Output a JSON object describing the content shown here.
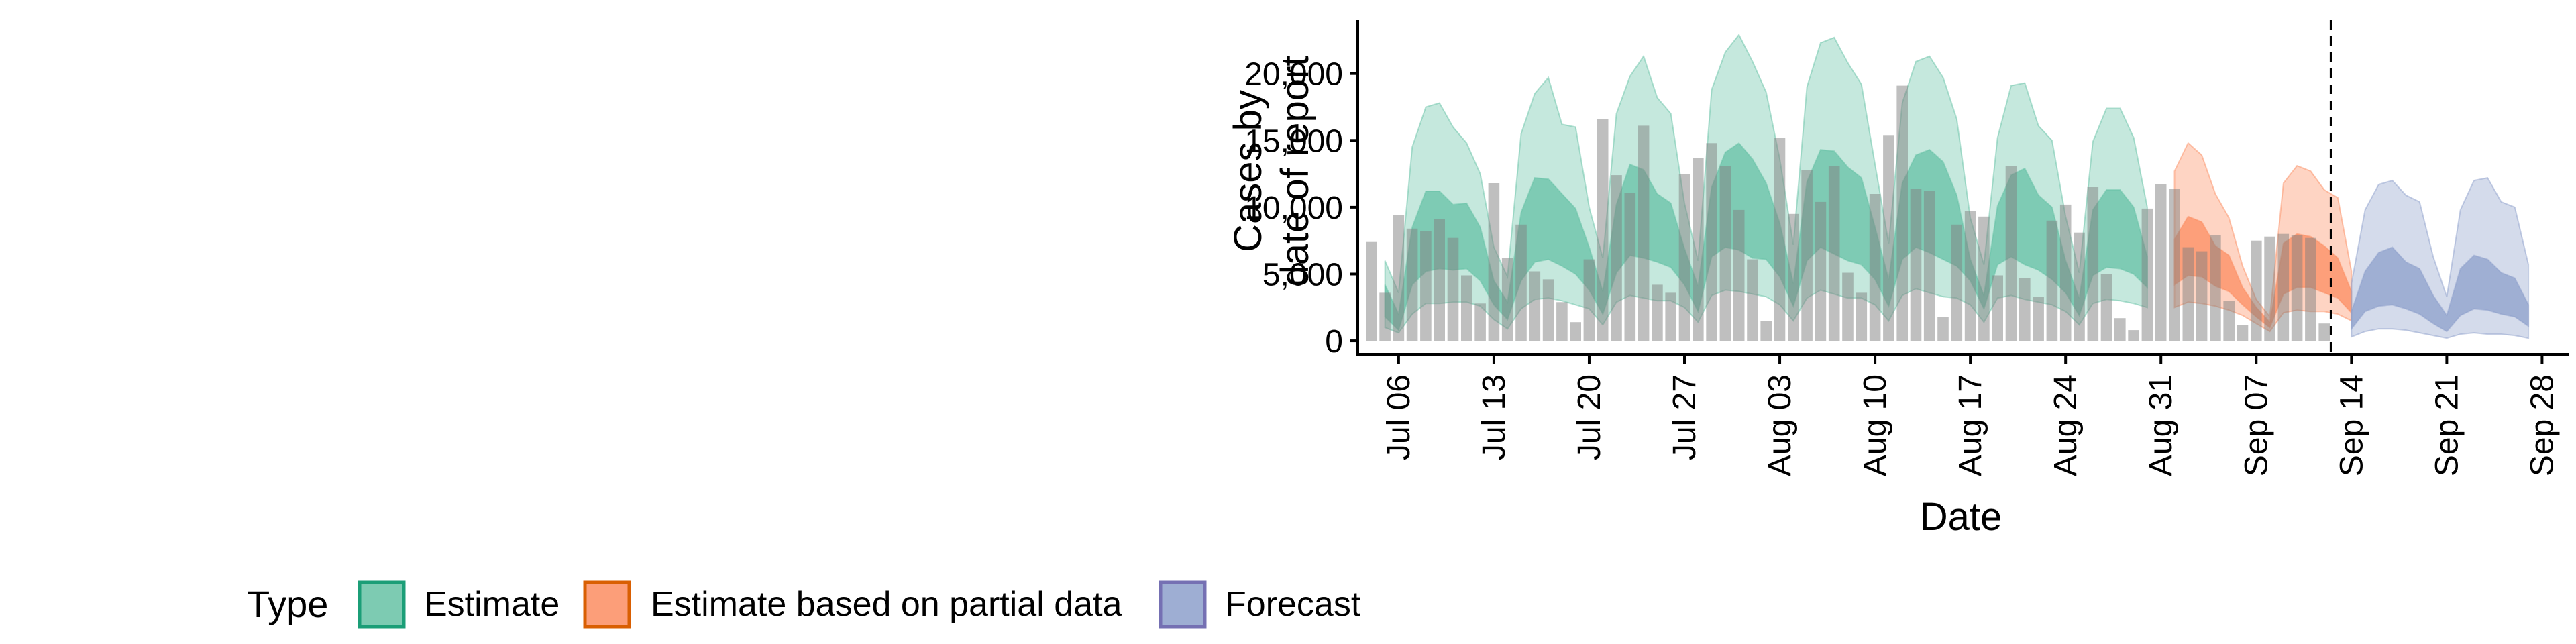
{
  "chart_data": {
    "type": "area",
    "title": "",
    "xlabel": "Date",
    "ylabel_lines": [
      "Cases by",
      "date of report"
    ],
    "x_start": "2020-07-04",
    "x_ticks": [
      "Jul 06",
      "Jul 13",
      "Jul 20",
      "Jul 27",
      "Aug 03",
      "Aug 10",
      "Aug 17",
      "Aug 24",
      "Aug 31",
      "Sep 07",
      "Sep 14",
      "Sep 21",
      "Sep 28"
    ],
    "xlim": [
      "2020-07-03",
      "2020-09-30"
    ],
    "ylim": [
      -1000,
      24000
    ],
    "y_ticks": [
      0,
      5000,
      10000,
      15000,
      20000
    ],
    "y_tick_labels": [
      "0",
      "5,000",
      "10,000",
      "15,000",
      "20,000"
    ],
    "vline_date": "2020-09-13",
    "reported_cases": [
      7400,
      3600,
      9400,
      8400,
      8200,
      9100,
      7700,
      4900,
      2800,
      11800,
      6200,
      8700,
      5200,
      4600,
      2900,
      1400,
      6100,
      16600,
      12400,
      11100,
      16100,
      4200,
      3600,
      12500,
      13700,
      14800,
      13100,
      9800,
      6100,
      1500,
      15200,
      9500,
      12800,
      10400,
      13100,
      5100,
      3600,
      11000,
      15400,
      19100,
      11400,
      11200,
      1800,
      8700,
      9700,
      9300,
      4900,
      13100,
      4700,
      3300,
      9000,
      10200,
      8100,
      11500,
      5000,
      1700,
      800,
      9900,
      11700,
      11400,
      7000,
      6700,
      7900,
      3000,
      1200,
      7500,
      7800,
      8000,
      7900,
      7700,
      1300
    ],
    "series": [
      {
        "name": "Estimate",
        "color": "#66c2a5",
        "start": "2020-07-05",
        "outer_lo": [
          1000,
          600,
          2000,
          2800,
          2800,
          2900,
          2900,
          2600,
          1600,
          900,
          2400,
          3100,
          3200,
          3000,
          2700,
          2400,
          1200,
          2900,
          3400,
          3200,
          3000,
          3000,
          2500,
          1400,
          3400,
          3800,
          3700,
          3500,
          3300,
          2700,
          1500,
          3200,
          3800,
          3500,
          3200,
          3200,
          2700,
          1500,
          3400,
          3900,
          3600,
          3300,
          3200,
          2700,
          1400,
          3200,
          3400,
          3100,
          2900,
          2700,
          2200,
          1200,
          2800,
          3100,
          3000,
          2800,
          2500
        ],
        "outer_hi": [
          6000,
          3600,
          14500,
          17500,
          17800,
          16000,
          14800,
          12500,
          7000,
          4800,
          15500,
          18500,
          19700,
          16200,
          16000,
          10000,
          6200,
          17000,
          19800,
          21300,
          18200,
          17000,
          10300,
          6000,
          18800,
          21600,
          22900,
          20900,
          18600,
          13600,
          7200,
          19000,
          22300,
          22700,
          20800,
          19200,
          13200,
          7300,
          17800,
          20900,
          21300,
          19700,
          16600,
          9200,
          5700,
          15200,
          19100,
          19300,
          16100,
          15000,
          9300,
          5100,
          14900,
          17400,
          17400,
          15200,
          10000
        ],
        "inner_lo": [
          1800,
          800,
          4200,
          5200,
          5400,
          5300,
          5400,
          4500,
          2700,
          1600,
          4500,
          5900,
          6100,
          5600,
          5000,
          3800,
          2000,
          5100,
          6400,
          6200,
          5900,
          5500,
          4200,
          2200,
          6300,
          7000,
          6800,
          6200,
          6100,
          4800,
          2600,
          6000,
          7000,
          6500,
          6000,
          5700,
          4600,
          2600,
          6100,
          7000,
          6600,
          6100,
          5600,
          4500,
          2400,
          5700,
          6300,
          5700,
          5300,
          4600,
          3600,
          1900,
          4900,
          5500,
          5400,
          5000,
          4000
        ],
        "inner_hi": [
          4200,
          2000,
          8500,
          11200,
          11200,
          10200,
          10300,
          8500,
          4500,
          2900,
          9600,
          12200,
          12100,
          11000,
          9900,
          7000,
          3700,
          10200,
          13200,
          12800,
          11000,
          10300,
          6900,
          4100,
          11500,
          14100,
          14800,
          13600,
          11800,
          8800,
          4300,
          11900,
          14300,
          14200,
          13000,
          12200,
          8500,
          4600,
          11800,
          13900,
          14300,
          13400,
          10900,
          6100,
          3400,
          10100,
          12400,
          12900,
          10900,
          10000,
          6000,
          3200,
          9800,
          11300,
          11300,
          10000,
          6300
        ]
      },
      {
        "name": "Estimate based on partial data",
        "color": "#fc8d62",
        "start": "2020-09-01",
        "outer_lo": [
          2500,
          2900,
          2800,
          2600,
          2300,
          1900,
          1300,
          700,
          2100,
          2300,
          2200,
          2200,
          2000,
          1500
        ],
        "outer_hi": [
          12700,
          14800,
          13900,
          11000,
          9200,
          5600,
          3100,
          1800,
          11800,
          13100,
          12700,
          11300,
          10700,
          5200
        ],
        "inner_lo": [
          4200,
          4900,
          4800,
          4100,
          3700,
          2700,
          1800,
          1000,
          3500,
          4000,
          4000,
          3600,
          3200,
          2100
        ],
        "inner_hi": [
          7600,
          9300,
          8900,
          7100,
          6400,
          4000,
          2500,
          1400,
          7300,
          8000,
          7800,
          7100,
          6200,
          3700
        ]
      },
      {
        "name": "Forecast",
        "color": "#8da0cb",
        "start": "2020-09-14",
        "outer_lo": [
          300,
          700,
          900,
          900,
          800,
          600,
          400,
          200,
          500,
          600,
          500,
          500,
          400,
          200
        ],
        "outer_hi": [
          4300,
          9800,
          11700,
          12000,
          10900,
          10400,
          6300,
          3300,
          9800,
          12000,
          12200,
          10400,
          10000,
          5700
        ],
        "inner_lo": [
          900,
          2200,
          2600,
          2700,
          2400,
          2000,
          1300,
          700,
          1900,
          2400,
          2300,
          2000,
          1800,
          1100
        ],
        "inner_hi": [
          2200,
          5200,
          6600,
          7000,
          5900,
          5400,
          3400,
          1900,
          5400,
          6400,
          6100,
          5100,
          4700,
          2700
        ]
      }
    ],
    "legend": {
      "title": "Type",
      "position": "bottom-left",
      "items": [
        {
          "label": "Estimate",
          "fill": "#66c2a5",
          "stroke": "#1b9e77"
        },
        {
          "label": "Estimate based on partial data",
          "fill": "#fc8d62",
          "stroke": "#d95f02"
        },
        {
          "label": "Forecast",
          "fill": "#8da0cb",
          "stroke": "#7570b3"
        }
      ]
    },
    "grid": false
  }
}
